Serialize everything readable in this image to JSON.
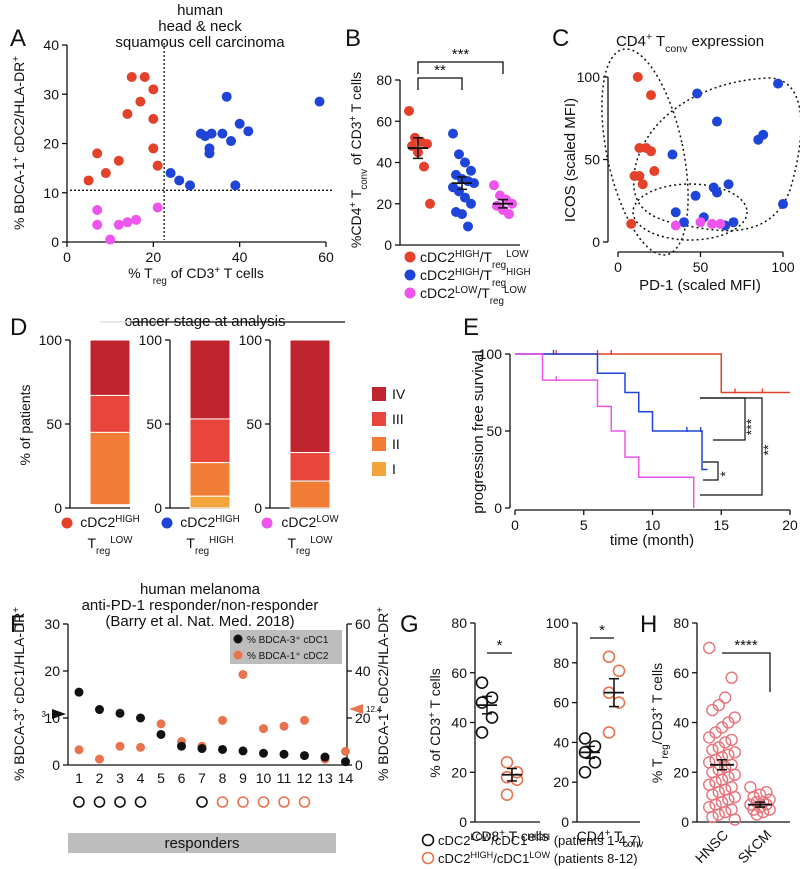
{
  "panels": {
    "A": {
      "letter": "A",
      "title": [
        "human",
        "head & neck",
        "squamous cell carcinoma"
      ]
    },
    "B": {
      "letter": "B",
      "sig": [
        "**",
        "***"
      ]
    },
    "C": {
      "letter": "C",
      "title": "CD4⁺ T_conv expression"
    },
    "D": {
      "letter": "D",
      "header": "cancer stage at analysis",
      "stage_labels": [
        "IV",
        "III",
        "II",
        "I"
      ]
    },
    "E": {
      "letter": "E",
      "sig": [
        "***",
        "**",
        "*"
      ]
    },
    "F": {
      "letter": "F",
      "title": [
        "human melanoma",
        "anti-PD-1 responder/non-responder",
        "(Barry et al. Nat. Med. 2018)"
      ],
      "responders_label": "responders",
      "left_marker": "3",
      "right_marker": "12.4"
    },
    "G": {
      "letter": "G",
      "sig": [
        "*",
        "*"
      ],
      "legend": [
        "cDC2ᴸᴼᵂ/cDC1ᴴᴵᴳᴴ (patients 1-4,7)",
        "cDC2ᴴᴵᴳᴴ/cDC1ᴸᴼᵂ (patients 8-12)"
      ]
    },
    "H": {
      "letter": "H",
      "sig": "****"
    }
  },
  "colors": {
    "red": "#e4412b",
    "blue": "#1f45d8",
    "magenta": "#ee55ee",
    "orange": "#e8734e",
    "iv": "#c0242f",
    "iii": "#e8453c",
    "ii": "#f07c35",
    "i": "#f3a43a",
    "gray": "#bdbdbd"
  },
  "chart_data": [
    {
      "panel": "A",
      "type": "scatter",
      "xlabel": "% T_reg of CD3⁺ T cells",
      "ylabel": "% BDCA-1⁺ cDC2/HLA-DR⁺",
      "xlim": [
        0,
        60
      ],
      "ylim": [
        0,
        40
      ],
      "xticks": [
        0,
        20,
        40,
        60
      ],
      "yticks": [
        0,
        10,
        20,
        30,
        40
      ],
      "threshold_x": 22.5,
      "threshold_y": 10.5,
      "series": [
        {
          "color": "red",
          "points": [
            [
              5,
              12.5
            ],
            [
              7,
              18
            ],
            [
              9,
              14
            ],
            [
              12,
              16.5
            ],
            [
              14,
              26
            ],
            [
              15,
              33.5
            ],
            [
              18,
              33.5
            ],
            [
              17,
              28.5
            ],
            [
              20,
              31
            ],
            [
              20,
              25
            ],
            [
              20,
              19
            ],
            [
              21,
              15.5
            ]
          ]
        },
        {
          "color": "blue",
          "points": [
            [
              24,
              14
            ],
            [
              26,
              12.5
            ],
            [
              28.5,
              11.5
            ],
            [
              31,
              22
            ],
            [
              32,
              21.5
            ],
            [
              33,
              19
            ],
            [
              33,
              18
            ],
            [
              33.5,
              22
            ],
            [
              36,
              22
            ],
            [
              37,
              29.5
            ],
            [
              38,
              20.5
            ],
            [
              39,
              11.5
            ],
            [
              40,
              24
            ],
            [
              42,
              22.5
            ],
            [
              58.5,
              28.5
            ]
          ]
        },
        {
          "color": "magenta",
          "points": [
            [
              7,
              6.5
            ],
            [
              7,
              3.5
            ],
            [
              10,
              0.5
            ],
            [
              12,
              3.5
            ],
            [
              14,
              4
            ],
            [
              16,
              4.5
            ],
            [
              21,
              7
            ]
          ]
        }
      ]
    },
    {
      "panel": "B",
      "type": "scatter",
      "ylabel": "%CD4⁺ T_conv of CD3⁺ T cells",
      "ylim": [
        0,
        80
      ],
      "yticks": [
        0,
        20,
        40,
        60,
        80
      ],
      "groups": [
        {
          "color": "red",
          "label": "cDC2ᴴᴵᴳᴴ/T_regᴸᴼᵂ",
          "mean": 47,
          "sem": 5,
          "values": [
            65,
            52,
            50,
            49,
            48,
            45,
            38,
            20
          ]
        },
        {
          "color": "blue",
          "label": "cDC2ᴴᴵᴳᴴ/T_regᴴᴵᴳᴴ",
          "mean": 30,
          "sem": 3,
          "values": [
            54,
            44,
            40,
            36,
            34,
            32,
            31,
            30,
            28,
            26,
            23,
            20,
            16,
            15,
            9
          ]
        },
        {
          "color": "magenta",
          "label": "cDC2ᴸᴼᵂ/T_regᴸᴼᵂ",
          "mean": 20,
          "sem": 2,
          "values": [
            29,
            24,
            22,
            20,
            19,
            17,
            15
          ]
        }
      ]
    },
    {
      "panel": "C",
      "type": "scatter",
      "xlabel": "PD-1 (scaled MFI)",
      "ylabel": "ICOS (scaled MFI)",
      "xlim": [
        0,
        100
      ],
      "ylim": [
        0,
        100
      ],
      "xticks": [
        0,
        50,
        100
      ],
      "yticks": [
        0,
        50,
        100
      ],
      "series": [
        {
          "color": "red",
          "points": [
            [
              12,
              100
            ],
            [
              20,
              89
            ],
            [
              13,
              57
            ],
            [
              17,
              57
            ],
            [
              20,
              55
            ],
            [
              10,
              40
            ],
            [
              13,
              40
            ],
            [
              22,
              43
            ],
            [
              15,
              35
            ],
            [
              8,
              11
            ]
          ]
        },
        {
          "color": "blue",
          "points": [
            [
              48,
              90
            ],
            [
              60,
              73
            ],
            [
              33,
              53
            ],
            [
              58,
              33
            ],
            [
              60,
              30
            ],
            [
              67,
              35
            ],
            [
              85,
              62
            ],
            [
              88,
              65
            ],
            [
              97,
              96
            ],
            [
              100,
              23
            ],
            [
              35,
              18
            ],
            [
              47,
              28
            ],
            [
              52,
              15
            ],
            [
              65,
              10
            ],
            [
              70,
              12
            ],
            [
              40,
              12
            ]
          ]
        },
        {
          "color": "magenta",
          "points": [
            [
              35,
              10
            ],
            [
              50,
              12
            ],
            [
              57,
              11
            ],
            [
              62,
              11
            ]
          ]
        }
      ]
    },
    {
      "panel": "D",
      "type": "bar",
      "ylabel": "% of patients",
      "ylim": [
        0,
        100
      ],
      "yticks": [
        0,
        50,
        100
      ],
      "stages": [
        "IV",
        "III",
        "II",
        "I"
      ],
      "groups": [
        {
          "legend": "cDC2ᴴᴵᴳᴴ T_regᴸᴼᵂ",
          "color": "red",
          "segments": [
            33,
            22,
            43,
            0
          ]
        },
        {
          "legend": "cDC2ᴴᴵᴳᴴ T_regᴴᴵᴳᴴ",
          "color": "blue",
          "segments": [
            47,
            26,
            20,
            7
          ]
        },
        {
          "legend": "cDC2ᴸᴼᵂ T_regᴸᴼᵂ",
          "color": "magenta",
          "segments": [
            67,
            17,
            16,
            0
          ]
        }
      ]
    },
    {
      "panel": "E",
      "type": "line",
      "xlabel": "time (month)",
      "ylabel": "progression free survival",
      "xlim": [
        0,
        20
      ],
      "ylim": [
        0,
        100
      ],
      "xticks": [
        0,
        5,
        10,
        15,
        20
      ],
      "yticks": [
        0,
        50,
        100
      ],
      "series": [
        {
          "color": "red",
          "steps": [
            [
              0,
              100
            ],
            [
              15,
              100
            ],
            [
              15,
              75
            ],
            [
              20,
              75
            ]
          ],
          "ticks": [
            [
              3,
              100
            ],
            [
              6,
              100
            ],
            [
              7,
              100
            ],
            [
              16,
              75
            ],
            [
              18,
              75
            ]
          ]
        },
        {
          "color": "blue",
          "steps": [
            [
              0,
              100
            ],
            [
              6,
              100
            ],
            [
              6,
              87.5
            ],
            [
              8,
              87.5
            ],
            [
              8,
              75
            ],
            [
              9,
              75
            ],
            [
              9,
              62.5
            ],
            [
              10,
              62.5
            ],
            [
              10,
              50
            ],
            [
              13.6,
              50
            ],
            [
              13.6,
              25
            ],
            [
              14,
              25
            ]
          ],
          "ticks": [
            [
              2.8,
              100
            ],
            [
              12.5,
              50
            ],
            [
              13.5,
              50
            ]
          ]
        },
        {
          "color": "magenta",
          "steps": [
            [
              0,
              100
            ],
            [
              2,
              100
            ],
            [
              2,
              83
            ],
            [
              6,
              83
            ],
            [
              6,
              66
            ],
            [
              7,
              66
            ],
            [
              7,
              50
            ],
            [
              8,
              50
            ],
            [
              8,
              33
            ],
            [
              9,
              33
            ],
            [
              9,
              20
            ],
            [
              13,
              20
            ],
            [
              13,
              0
            ]
          ],
          "ticks": [
            [
              3,
              83
            ]
          ]
        }
      ]
    },
    {
      "panel": "F",
      "type": "scatter",
      "ylabel_left": "% BDCA-3⁺ cDC1/HLA-DR⁺",
      "ylabel_right": "% BDCA-1⁺ cDC2/HLA-DR⁺",
      "yleft_lim": [
        0,
        30
      ],
      "yright_lim": [
        0,
        60
      ],
      "yleft_ticks": [
        0,
        10,
        20,
        30
      ],
      "yright_ticks": [
        0,
        20,
        40,
        60
      ],
      "categories": [
        "1",
        "2",
        "3",
        "4",
        "5",
        "6",
        "7",
        "8",
        "9",
        "10",
        "11",
        "12",
        "13",
        "14"
      ],
      "legend": [
        "% BDCA-3⁺ cDC1",
        "% BDCA-1⁺ cDC2"
      ],
      "cDC1": [
        15.5,
        11.8,
        11,
        10,
        6.5,
        4,
        3.5,
        3.3,
        3,
        2.5,
        2.3,
        2,
        1.7,
        0.7
      ],
      "cDC2": [
        6.5,
        2.5,
        8,
        7.5,
        17.5,
        10,
        8,
        19,
        38.5,
        15.5,
        16.5,
        19,
        2.5,
        5.8
      ],
      "circles": [
        "black",
        "black",
        "black",
        "black",
        "none",
        "none",
        "black",
        "orange",
        "orange",
        "orange",
        "orange",
        "orange",
        "none",
        "none"
      ]
    },
    {
      "panel": "G",
      "type": "scatter",
      "groups": [
        {
          "label": "CD8⁺ T cells",
          "ylabel": "% of CD3⁺ T cells",
          "ylim": [
            0,
            80
          ],
          "yticks": [
            0,
            20,
            40,
            60,
            80
          ],
          "black": {
            "values": [
              56,
              50,
              48,
              42,
              36
            ],
            "mean": 47,
            "sem": 3.5
          },
          "orange": {
            "values": [
              24,
              20,
              18,
              17,
              11
            ],
            "mean": 19,
            "sem": 2.5
          }
        },
        {
          "label": "CD4⁺ T_conv",
          "ylim": [
            0,
            100
          ],
          "yticks": [
            0,
            20,
            40,
            60,
            80,
            100
          ],
          "black": {
            "values": [
              42,
              38,
              35,
              30,
              25
            ],
            "mean": 35,
            "sem": 3
          },
          "orange": {
            "values": [
              83,
              76,
              65,
              60,
              45
            ],
            "mean": 65,
            "sem": 7
          }
        }
      ]
    },
    {
      "panel": "H",
      "type": "scatter",
      "ylabel": "% T_reg/CD3⁺ T cells",
      "ylim": [
        0,
        80
      ],
      "yticks": [
        0,
        20,
        40,
        60,
        80
      ],
      "categories": [
        "HNSC",
        "SKCM"
      ],
      "groups": [
        {
          "label": "HNSC",
          "mean": 23,
          "sem": 2
        },
        {
          "label": "SKCM",
          "mean": 7,
          "sem": 1
        }
      ]
    }
  ]
}
